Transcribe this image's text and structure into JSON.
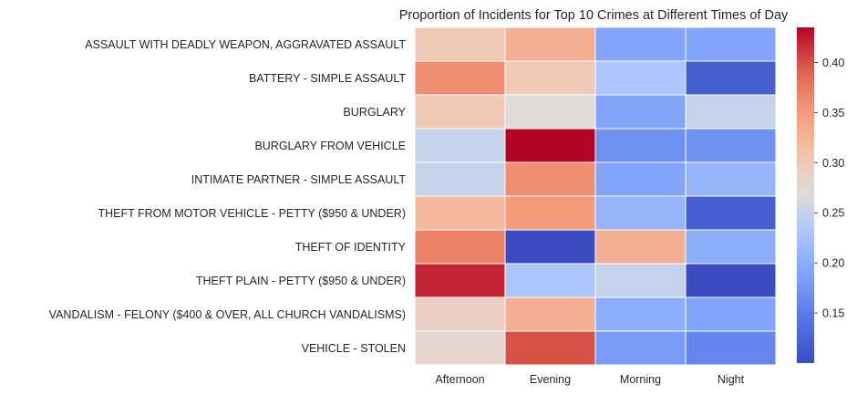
{
  "chart_data": {
    "type": "heatmap",
    "title": "Proportion of Incidents for Top 10 Crimes at Different Times of Day",
    "xlabel": "",
    "ylabel": "",
    "columns": [
      "Afternoon",
      "Evening",
      "Morning",
      "Night"
    ],
    "rows": [
      "ASSAULT WITH DEADLY WEAPON, AGGRAVATED ASSAULT",
      "BATTERY - SIMPLE ASSAULT",
      "BURGLARY",
      "BURGLARY FROM VEHICLE",
      "INTIMATE PARTNER - SIMPLE ASSAULT",
      "THEFT FROM MOTOR VEHICLE - PETTY ($950 & UNDER)",
      "THEFT OF IDENTITY",
      "THEFT PLAIN - PETTY ($950 & UNDER)",
      "VANDALISM - FELONY ($400 & OVER, ALL CHURCH VANDALISMS)",
      "VEHICLE - STOLEN"
    ],
    "values": [
      [
        0.3,
        0.33,
        0.19,
        0.19
      ],
      [
        0.36,
        0.3,
        0.23,
        0.12
      ],
      [
        0.3,
        0.27,
        0.19,
        0.25
      ],
      [
        0.25,
        0.44,
        0.17,
        0.17
      ],
      [
        0.25,
        0.36,
        0.19,
        0.21
      ],
      [
        0.32,
        0.35,
        0.21,
        0.12
      ],
      [
        0.37,
        0.1,
        0.33,
        0.2
      ],
      [
        0.42,
        0.23,
        0.25,
        0.1
      ],
      [
        0.29,
        0.33,
        0.2,
        0.19
      ],
      [
        0.28,
        0.4,
        0.18,
        0.16
      ]
    ],
    "colorbar": {
      "colormap": "coolwarm",
      "min": 0.1,
      "max": 0.435,
      "ticks": [
        0.15,
        0.2,
        0.25,
        0.3,
        0.35,
        0.4
      ],
      "tick_labels": [
        "0.15",
        "0.20",
        "0.25",
        "0.30",
        "0.35",
        "0.40"
      ]
    },
    "grid": false,
    "cell_border_color": "#ffffff"
  }
}
